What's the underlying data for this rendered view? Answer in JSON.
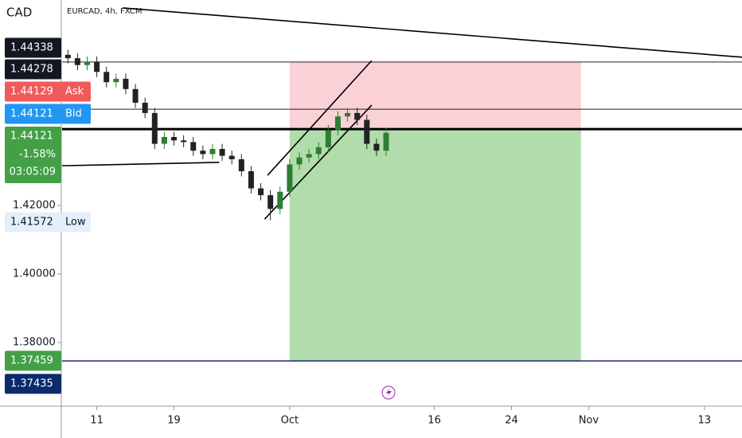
{
  "chart_data": {
    "type": "candlestick",
    "title": "EURCAD, 4h, FXCM",
    "currency": "CAD",
    "x": [
      7,
      8,
      9,
      10,
      11,
      12,
      13,
      14,
      15,
      16,
      17,
      18,
      19,
      20,
      21,
      22,
      23,
      24,
      25,
      26,
      27,
      28,
      29,
      30,
      31,
      32,
      33,
      34,
      35,
      36,
      37,
      38,
      39,
      40
    ],
    "open": [
      1.464,
      1.463,
      1.461,
      1.462,
      1.459,
      1.456,
      1.457,
      1.454,
      1.45,
      1.447,
      1.438,
      1.44,
      1.439,
      1.4385,
      1.436,
      1.435,
      1.4365,
      1.4345,
      1.4335,
      1.43,
      1.425,
      1.423,
      1.419,
      1.424,
      1.432,
      1.434,
      1.435,
      1.437,
      1.442,
      1.446,
      1.447,
      1.445,
      1.438,
      1.436
    ],
    "high": [
      1.4655,
      1.4645,
      1.4635,
      1.4635,
      1.4605,
      1.4585,
      1.4585,
      1.4555,
      1.4515,
      1.4485,
      1.4415,
      1.4415,
      1.4405,
      1.44,
      1.4375,
      1.438,
      1.438,
      1.436,
      1.435,
      1.4315,
      1.4265,
      1.4245,
      1.4255,
      1.4335,
      1.4355,
      1.4365,
      1.4385,
      1.4435,
      1.4475,
      1.4485,
      1.4485,
      1.4465,
      1.4395,
      1.4427
    ],
    "low": [
      1.4615,
      1.4595,
      1.4595,
      1.4575,
      1.4545,
      1.4545,
      1.4525,
      1.4485,
      1.4455,
      1.4365,
      1.4365,
      1.4375,
      1.437,
      1.4345,
      1.4335,
      1.4335,
      1.433,
      1.432,
      1.4285,
      1.4235,
      1.4215,
      1.41572,
      1.4175,
      1.4225,
      1.4305,
      1.4325,
      1.4335,
      1.4355,
      1.4405,
      1.4445,
      1.4435,
      1.4365,
      1.4345,
      1.4345
    ],
    "close": [
      1.463,
      1.461,
      1.462,
      1.459,
      1.456,
      1.457,
      1.454,
      1.45,
      1.447,
      1.438,
      1.44,
      1.439,
      1.4385,
      1.436,
      1.435,
      1.4365,
      1.4345,
      1.4335,
      1.43,
      1.425,
      1.423,
      1.419,
      1.424,
      1.432,
      1.434,
      1.435,
      1.437,
      1.442,
      1.446,
      1.447,
      1.445,
      1.438,
      1.436,
      1.4412
    ],
    "up_color": "#2e7d32",
    "down_color": "#222222",
    "xlim": [
      6.4,
      76.9
    ],
    "ylim": [
      1.3614,
      1.48
    ],
    "xticks": [
      {
        "value": 10,
        "label": "11"
      },
      {
        "value": 18,
        "label": "19"
      },
      {
        "value": 30,
        "label": "Oct"
      },
      {
        "value": 45,
        "label": "16"
      },
      {
        "value": 53,
        "label": "24"
      },
      {
        "value": 61,
        "label": "Nov"
      },
      {
        "value": 73,
        "label": "13"
      }
    ],
    "yticks": [
      {
        "value": 1.38,
        "label": "1.38000"
      },
      {
        "value": 1.4,
        "label": "1.40000"
      },
      {
        "value": 1.42,
        "label": "1.42000"
      }
    ],
    "levels": [
      {
        "price": 1.4619,
        "color": "#222222",
        "width": 1
      },
      {
        "price": 1.4481,
        "color": "#222222",
        "width": 1
      },
      {
        "price": 1.4423,
        "color": "#000000",
        "width": 3
      },
      {
        "price": 1.37459,
        "color": "#1a237e",
        "width": 1.5
      }
    ],
    "trendlines": [
      [
        [
          12.7,
          1.4777
        ],
        [
          76.9,
          1.4633
        ]
      ],
      [
        [
          6.4,
          1.4316
        ],
        [
          22.7,
          1.4326
        ]
      ],
      [
        [
          27.7,
          1.4288
        ],
        [
          38.5,
          1.4623
        ]
      ],
      [
        [
          27.4,
          1.416
        ],
        [
          38.5,
          1.4493
        ]
      ]
    ],
    "position": {
      "x0": 30,
      "x1": 60.2,
      "entry": 1.4421,
      "stop": 1.4619,
      "target": 1.37459
    },
    "price_tags": [
      {
        "label": "1.44338",
        "color": "#131722"
      },
      {
        "label": "1.44278",
        "color": "#131722"
      },
      {
        "label": "1.44129",
        "text": "Ask",
        "color": "#f05a5a"
      },
      {
        "label": "1.44121",
        "text": "Bid",
        "color": "#2196f3"
      },
      {
        "label": "1.44121",
        "sub": [
          "-1.58%",
          "03:05:09"
        ],
        "color": "#43a047"
      },
      {
        "label": "1.41572",
        "text": "Low",
        "color": "#e3f0fb",
        "ink": "#131722"
      },
      {
        "label": "1.37459",
        "color": "#43a047"
      },
      {
        "label": "1.37435",
        "color": "#0d2a6b"
      }
    ]
  }
}
